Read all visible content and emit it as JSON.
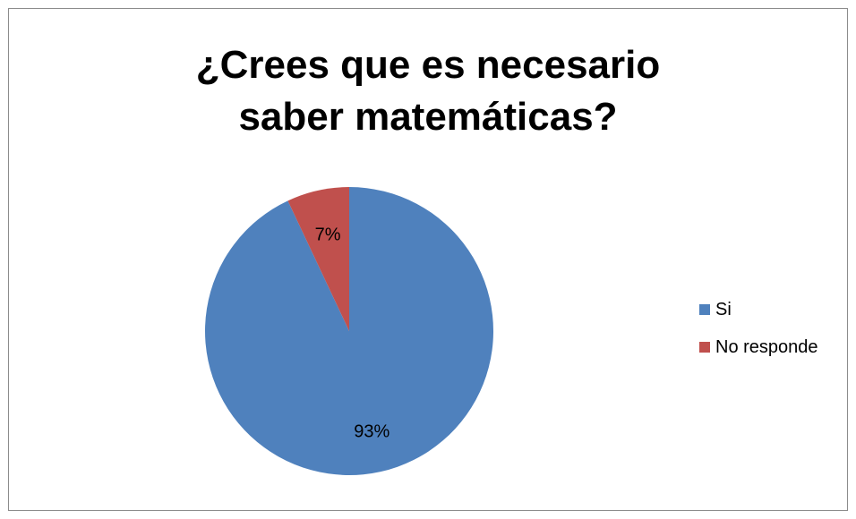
{
  "chart_data": {
    "type": "pie",
    "title": "¿Crees que es necesario saber matemáticas?",
    "categories": [
      "Si",
      "No responde"
    ],
    "values": [
      93,
      7
    ],
    "data_labels": [
      "93%",
      "7%"
    ],
    "colors": [
      "#4f81bd",
      "#c0504d"
    ],
    "legend_position": "right",
    "start_angle_deg": 0,
    "direction": "clockwise"
  }
}
